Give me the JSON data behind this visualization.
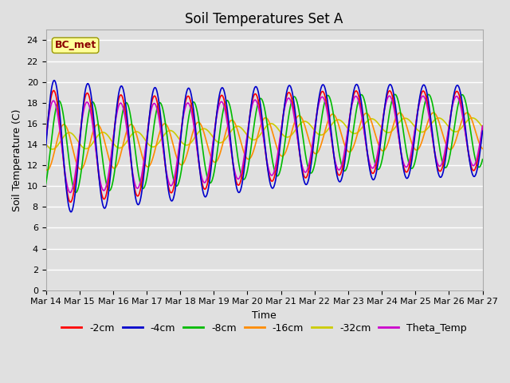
{
  "title": "Soil Temperatures Set A",
  "xlabel": "Time",
  "ylabel": "Soil Temperature (C)",
  "ylim": [
    0,
    25
  ],
  "yticks": [
    0,
    2,
    4,
    6,
    8,
    10,
    12,
    14,
    16,
    18,
    20,
    22,
    24
  ],
  "xlim_days": [
    0,
    13
  ],
  "x_tick_labels": [
    "Mar 14",
    "Mar 15",
    "Mar 16",
    "Mar 17",
    "Mar 18",
    "Mar 19",
    "Mar 20",
    "Mar 21",
    "Mar 22",
    "Mar 23",
    "Mar 24",
    "Mar 25",
    "Mar 26",
    "Mar 27"
  ],
  "annotation_text": "BC_met",
  "annotation_color": "#8B0000",
  "annotation_bg": "#FFFF99",
  "colors": {
    "-2cm": "#FF0000",
    "-4cm": "#0000CC",
    "-8cm": "#00BB00",
    "-16cm": "#FF8C00",
    "-32cm": "#CCCC00",
    "Theta_Temp": "#CC00CC"
  },
  "background_color": "#E0E0E0",
  "plot_bg_color": "#E0E0E0",
  "grid_color": "#FFFFFF",
  "title_fontsize": 12,
  "axis_label_fontsize": 9,
  "tick_fontsize": 8,
  "legend_fontsize": 9
}
